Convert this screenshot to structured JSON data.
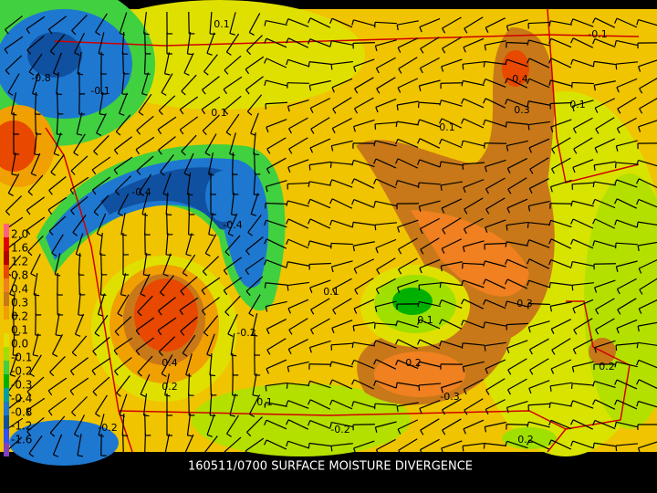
{
  "caption": "160511/0700 SURFACE MOISTURE DIVERGENCE",
  "legend": {
    "labels": [
      "2.0",
      "1.6",
      "1.2",
      "0.8",
      "0.4",
      "0.3",
      "0.2",
      "0.1",
      "0.0",
      "-0.1",
      "-0.2",
      "-0.3",
      "-0.4",
      "-0.8",
      "-1.2",
      "-1.6"
    ]
  },
  "contour_labels": [
    "0.1",
    "-0.8",
    "-0.1",
    "0.1",
    "0.4",
    "0.3",
    "0.1",
    "0.1",
    "-0.1",
    "-0.4",
    "-0.4",
    "0.1",
    "0.1",
    "0.3",
    "-0.2",
    "0.4",
    "0.2",
    "0.2",
    "0.2",
    "-0.3",
    "0.1",
    "-0.2",
    "-0.2",
    "0.2"
  ]
}
